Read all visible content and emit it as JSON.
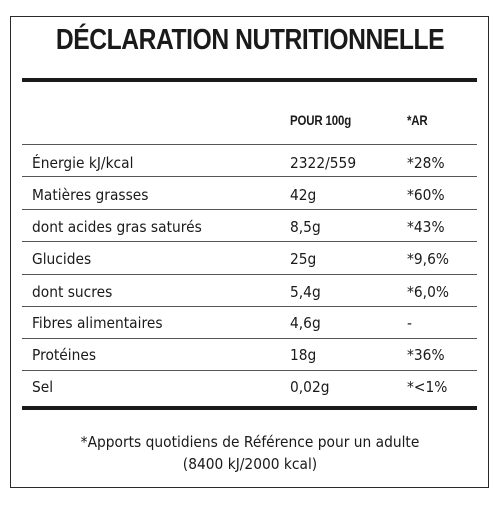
{
  "title": "DÉCLARATION NUTRITIONNELLE",
  "columns": {
    "per_100g": "POUR 100g",
    "ar": "*AR"
  },
  "rows": [
    {
      "name": "Énergie kJ/kcal",
      "value": "2322/559",
      "ar": "*28%"
    },
    {
      "name": "Matières grasses",
      "value": "42g",
      "ar": "*60%"
    },
    {
      "name": "dont acides gras saturés",
      "value": "8,5g",
      "ar": "*43%"
    },
    {
      "name": "Glucides",
      "value": "25g",
      "ar": "*9,6%"
    },
    {
      "name": "dont sucres",
      "value": "5,4g",
      "ar": "*6,0%"
    },
    {
      "name": "Fibres alimentaires",
      "value": "4,6g",
      "ar": "-"
    },
    {
      "name": "Protéines",
      "value": "18g",
      "ar": "*36%"
    },
    {
      "name": "Sel",
      "value": "0,02g",
      "ar": "*<1%"
    }
  ],
  "footnote": {
    "line1": "*Apports quotidiens de Référence pour un adulte",
    "line2": "(8400 kJ/2000 kcal)"
  }
}
